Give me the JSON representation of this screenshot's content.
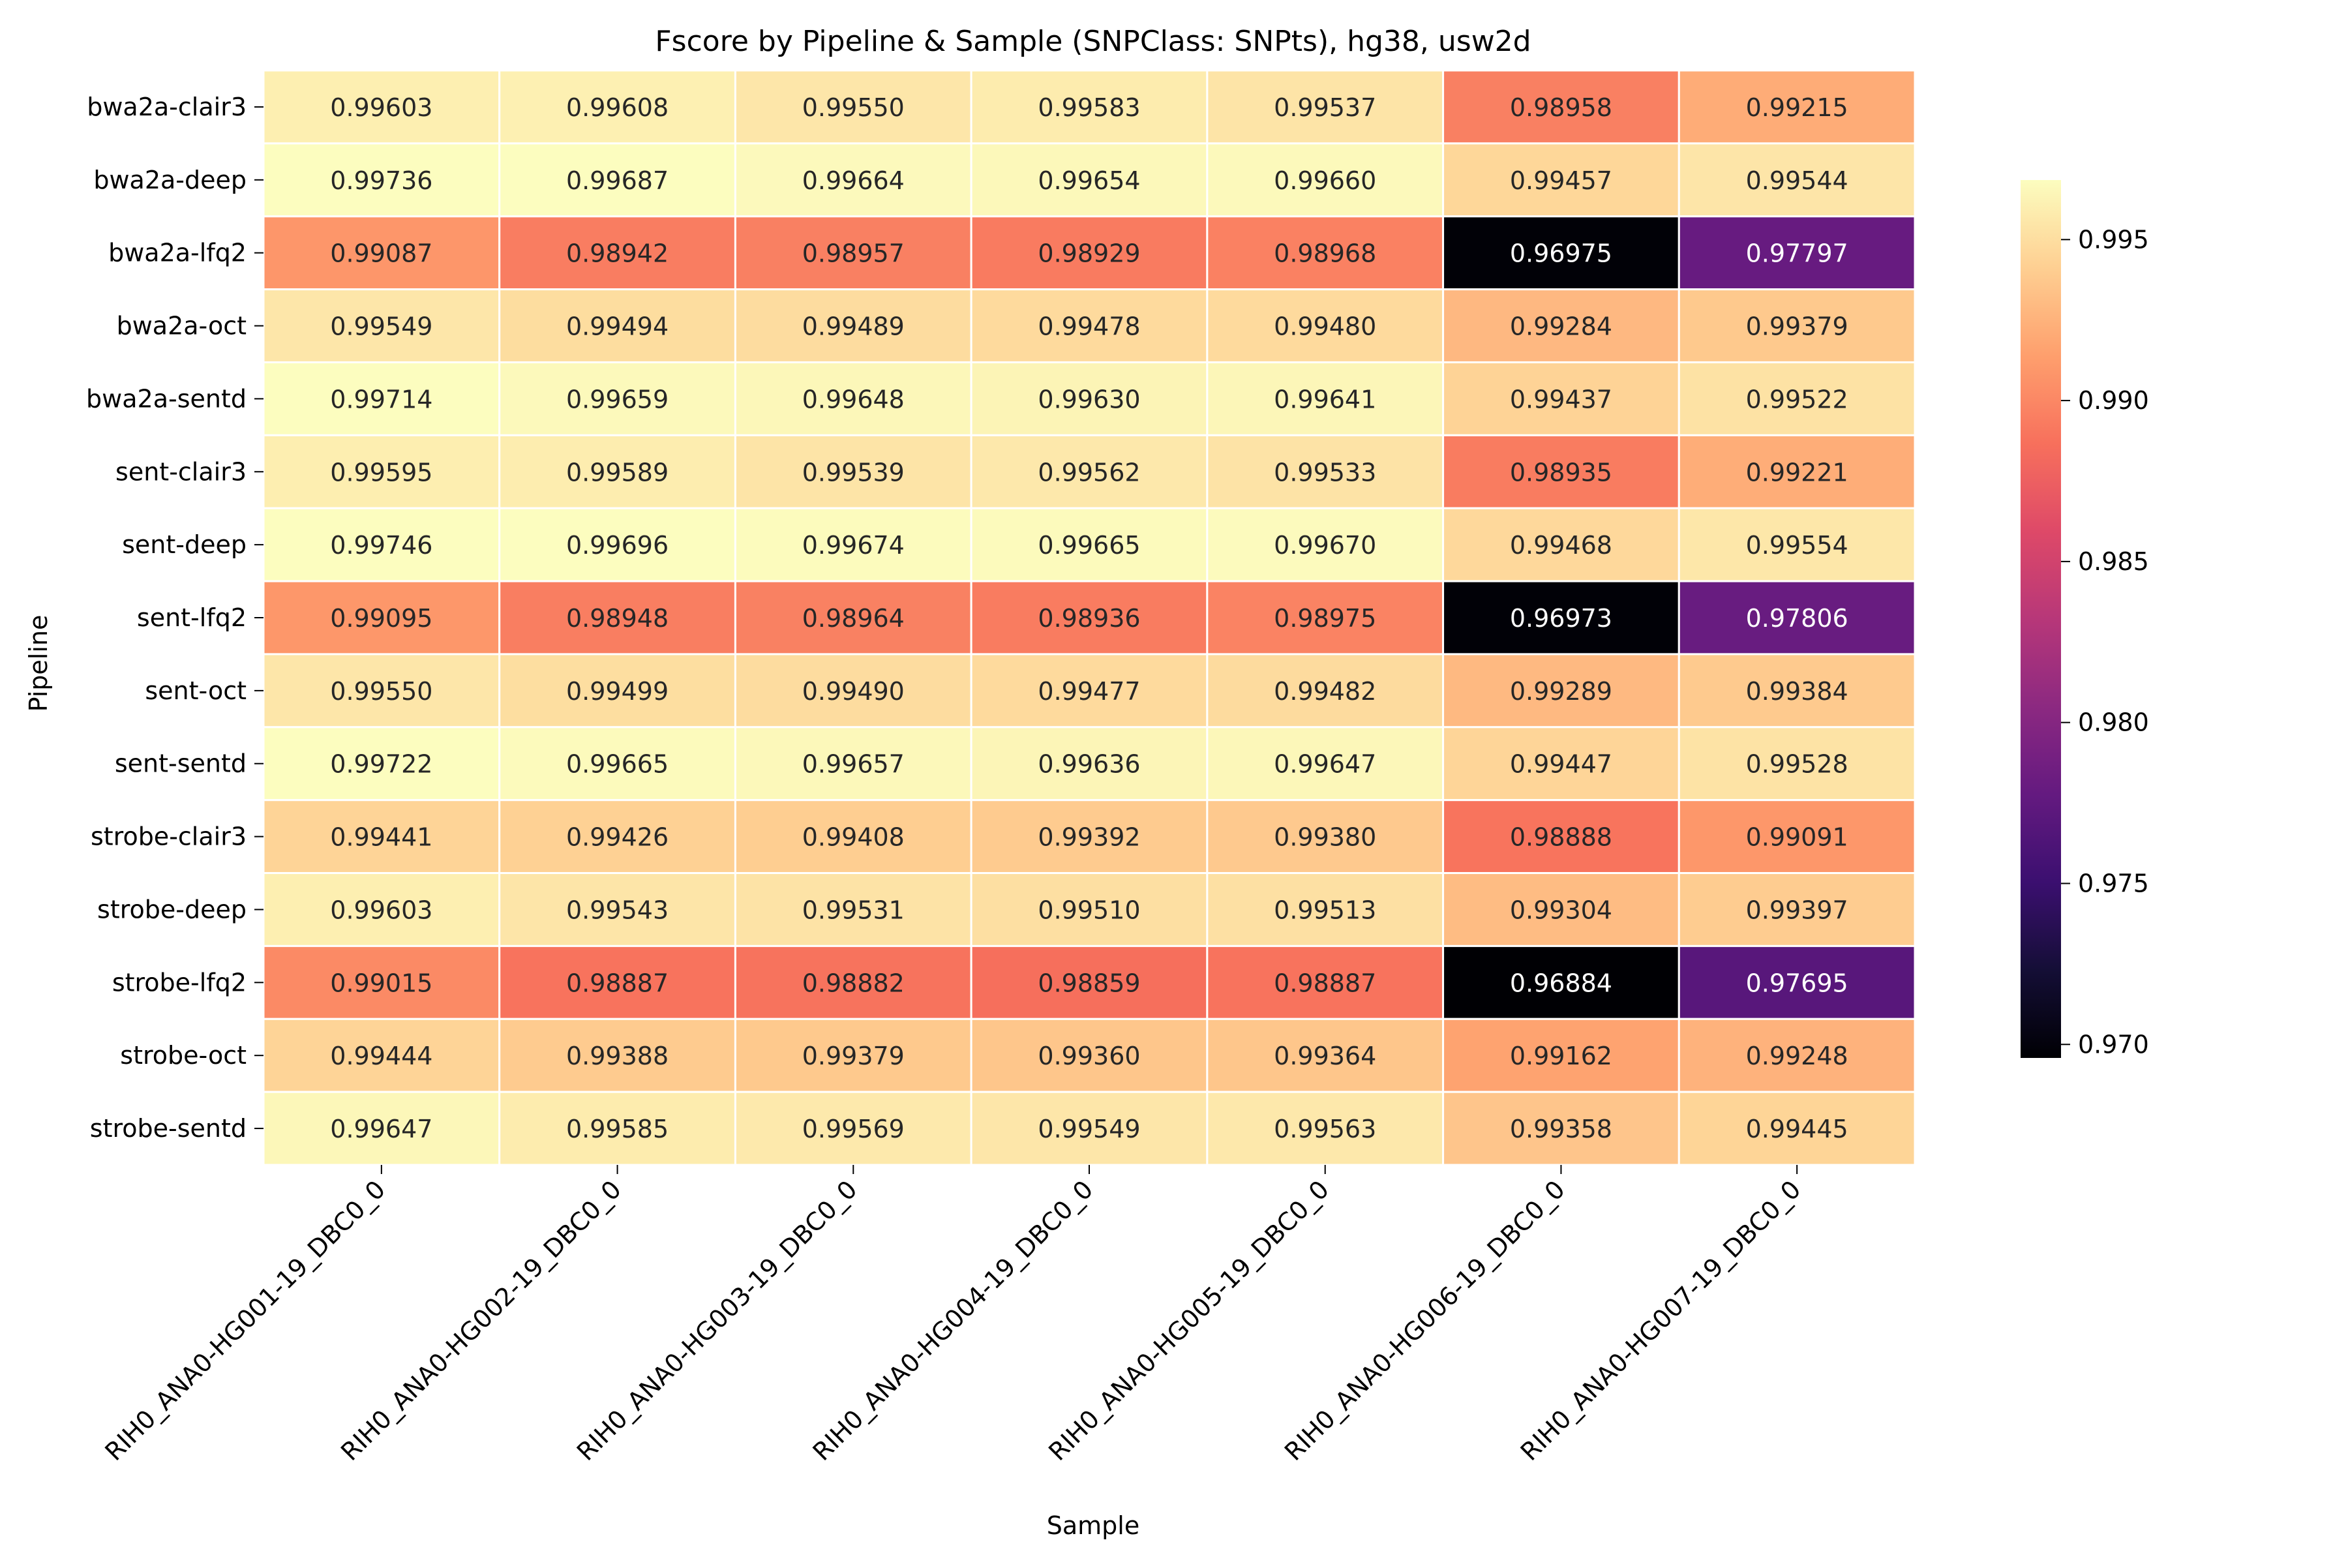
{
  "chart_data": {
    "type": "heatmap",
    "title": "Fscore by Pipeline & Sample (SNPClass: SNPts), hg38, usw2d",
    "xlabel": "Sample",
    "ylabel": "Pipeline",
    "columns": [
      "RIH0_ANA0-HG001-19_DBC0_0",
      "RIH0_ANA0-HG002-19_DBC0_0",
      "RIH0_ANA0-HG003-19_DBC0_0",
      "RIH0_ANA0-HG004-19_DBC0_0",
      "RIH0_ANA0-HG005-19_DBC0_0",
      "RIH0_ANA0-HG006-19_DBC0_0",
      "RIH0_ANA0-HG007-19_DBC0_0"
    ],
    "rows": [
      "bwa2a-clair3",
      "bwa2a-deep",
      "bwa2a-lfq2",
      "bwa2a-oct",
      "bwa2a-sentd",
      "sent-clair3",
      "sent-deep",
      "sent-lfq2",
      "sent-oct",
      "sent-sentd",
      "strobe-clair3",
      "strobe-deep",
      "strobe-lfq2",
      "strobe-oct",
      "strobe-sentd"
    ],
    "values": [
      [
        0.99603,
        0.99608,
        0.9955,
        0.99583,
        0.99537,
        0.98958,
        0.99215
      ],
      [
        0.99736,
        0.99687,
        0.99664,
        0.99654,
        0.9966,
        0.99457,
        0.99544
      ],
      [
        0.99087,
        0.98942,
        0.98957,
        0.98929,
        0.98968,
        0.96975,
        0.97797
      ],
      [
        0.99549,
        0.99494,
        0.99489,
        0.99478,
        0.9948,
        0.99284,
        0.99379
      ],
      [
        0.99714,
        0.99659,
        0.99648,
        0.9963,
        0.99641,
        0.99437,
        0.99522
      ],
      [
        0.99595,
        0.99589,
        0.99539,
        0.99562,
        0.99533,
        0.98935,
        0.99221
      ],
      [
        0.99746,
        0.99696,
        0.99674,
        0.99665,
        0.9967,
        0.99468,
        0.99554
      ],
      [
        0.99095,
        0.98948,
        0.98964,
        0.98936,
        0.98975,
        0.96973,
        0.97806
      ],
      [
        0.9955,
        0.99499,
        0.9949,
        0.99477,
        0.99482,
        0.99289,
        0.99384
      ],
      [
        0.99722,
        0.99665,
        0.99657,
        0.99636,
        0.99647,
        0.99447,
        0.99528
      ],
      [
        0.99441,
        0.99426,
        0.99408,
        0.99392,
        0.9938,
        0.98888,
        0.99091
      ],
      [
        0.99603,
        0.99543,
        0.99531,
        0.9951,
        0.99513,
        0.99304,
        0.99397
      ],
      [
        0.99015,
        0.98887,
        0.98882,
        0.98859,
        0.98887,
        0.96884,
        0.97695
      ],
      [
        0.99444,
        0.99388,
        0.99379,
        0.9936,
        0.99364,
        0.99162,
        0.99248
      ],
      [
        0.99647,
        0.99585,
        0.99569,
        0.99549,
        0.99563,
        0.99358,
        0.99445
      ]
    ],
    "value_labels": [
      [
        "0.99603",
        "0.99608",
        "0.99550",
        "0.99583",
        "0.99537",
        "0.98958",
        "0.99215"
      ],
      [
        "0.99736",
        "0.99687",
        "0.99664",
        "0.99654",
        "0.99660",
        "0.99457",
        "0.99544"
      ],
      [
        "0.99087",
        "0.98942",
        "0.98957",
        "0.98929",
        "0.98968",
        "0.96975",
        "0.97797"
      ],
      [
        "0.99549",
        "0.99494",
        "0.99489",
        "0.99478",
        "0.99480",
        "0.99284",
        "0.99379"
      ],
      [
        "0.99714",
        "0.99659",
        "0.99648",
        "0.99630",
        "0.99641",
        "0.99437",
        "0.99522"
      ],
      [
        "0.99595",
        "0.99589",
        "0.99539",
        "0.99562",
        "0.99533",
        "0.98935",
        "0.99221"
      ],
      [
        "0.99746",
        "0.99696",
        "0.99674",
        "0.99665",
        "0.99670",
        "0.99468",
        "0.99554"
      ],
      [
        "0.99095",
        "0.98948",
        "0.98964",
        "0.98936",
        "0.98975",
        "0.96973",
        "0.97806"
      ],
      [
        "0.99550",
        "0.99499",
        "0.99490",
        "0.99477",
        "0.99482",
        "0.99289",
        "0.99384"
      ],
      [
        "0.99722",
        "0.99665",
        "0.99657",
        "0.99636",
        "0.99647",
        "0.99447",
        "0.99528"
      ],
      [
        "0.99441",
        "0.99426",
        "0.99408",
        "0.99392",
        "0.99380",
        "0.98888",
        "0.99091"
      ],
      [
        "0.99603",
        "0.99543",
        "0.99531",
        "0.99510",
        "0.99513",
        "0.99304",
        "0.99397"
      ],
      [
        "0.99015",
        "0.98887",
        "0.98882",
        "0.98859",
        "0.98887",
        "0.96884",
        "0.97695"
      ],
      [
        "0.99444",
        "0.99388",
        "0.99379",
        "0.99360",
        "0.99364",
        "0.99162",
        "0.99248"
      ],
      [
        "0.99647",
        "0.99585",
        "0.99569",
        "0.99549",
        "0.99563",
        "0.99358",
        "0.99445"
      ]
    ],
    "colormap": "magma",
    "color_range": [
      0.96958,
      0.99685
    ],
    "colorbar_ticks": [
      0.97,
      0.975,
      0.98,
      0.985,
      0.99,
      0.995
    ],
    "colorbar_tick_labels": [
      "0.970",
      "0.975",
      "0.980",
      "0.985",
      "0.990",
      "0.995"
    ],
    "cell_border_color": "#ffffff",
    "grid": false,
    "legend": "colorbar-right"
  }
}
